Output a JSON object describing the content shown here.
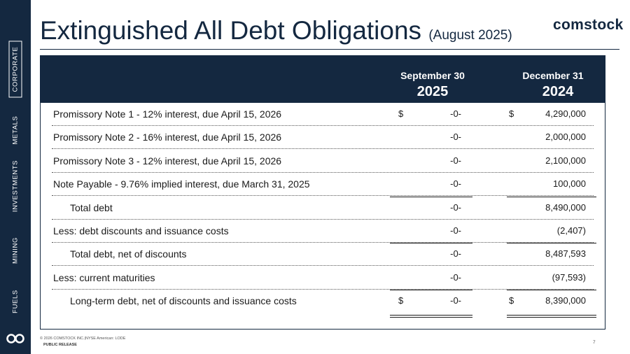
{
  "sidebar": {
    "items": [
      {
        "label": "CORPORATE",
        "active": true
      },
      {
        "label": "METALS",
        "active": false
      },
      {
        "label": "INVESTMENTS",
        "active": false
      },
      {
        "label": "MINING",
        "active": false
      },
      {
        "label": "FUELS",
        "active": false
      }
    ]
  },
  "header": {
    "title": "Extinguished All Debt Obligations",
    "subtitle": "(August 2025)",
    "brand": "comstock"
  },
  "table": {
    "columns": [
      {
        "month": "September 30",
        "year": "2025"
      },
      {
        "month": "December 31",
        "year": "2024"
      }
    ],
    "rows": [
      {
        "label": "Promissory Note 1 - 12% interest, due April 15, 2026",
        "cur1": "$",
        "v1": "-0-",
        "cur2": "$",
        "v2": "4,290,000"
      },
      {
        "label": "Promissory Note 2 - 16% interest, due April 15, 2026",
        "cur1": "",
        "v1": "-0-",
        "cur2": "",
        "v2": "2,000,000"
      },
      {
        "label": "Promissory Note 3 - 12% interest, due April 15, 2026",
        "cur1": "",
        "v1": "-0-",
        "cur2": "",
        "v2": "2,100,000"
      },
      {
        "label": "Note Payable - 9.76% implied interest, due March 31, 2025",
        "cur1": "",
        "v1": "-0-",
        "cur2": "",
        "v2": "100,000"
      },
      {
        "label": "Total debt",
        "cur1": "",
        "v1": "-0-",
        "cur2": "",
        "v2": "8,490,000"
      },
      {
        "label": "Less: debt discounts and issuance costs",
        "cur1": "",
        "v1": "-0-",
        "cur2": "",
        "v2": "(2,407)"
      },
      {
        "label": "Total debt, net of discounts",
        "cur1": "",
        "v1": "-0-",
        "cur2": "",
        "v2": "8,487,593"
      },
      {
        "label": "Less: current maturities",
        "cur1": "",
        "v1": "-0-",
        "cur2": "",
        "v2": "(97,593)"
      },
      {
        "label": "Long-term debt, net of discounts and issuance costs",
        "cur1": "$",
        "v1": "-0-",
        "cur2": "$",
        "v2": "8,390,000"
      }
    ]
  },
  "footer": {
    "copyright": "© 2026 COMSTOCK INC.|NYSE American: LODE",
    "release": "PUBLIC RELEASE",
    "page": "7"
  },
  "colors": {
    "navy": "#142840"
  }
}
